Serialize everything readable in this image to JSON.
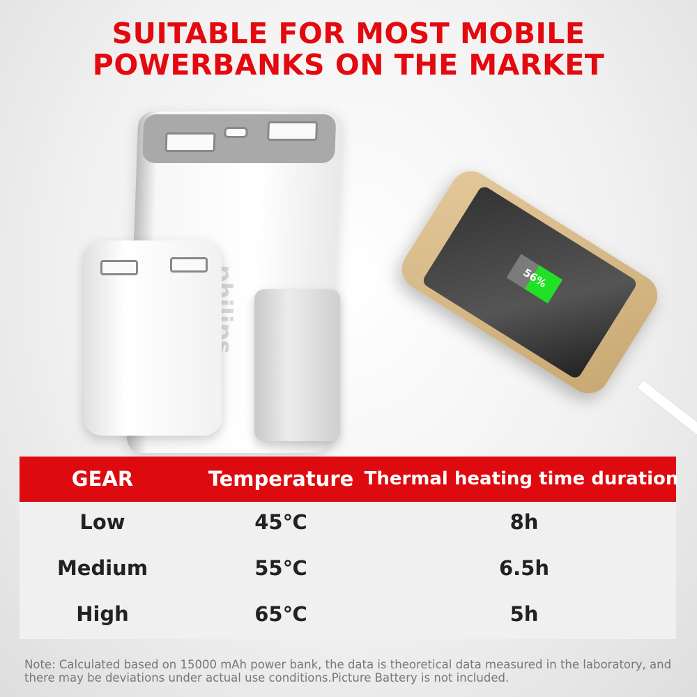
{
  "title": {
    "line1": "SUITABLE FOR MOST MOBILE",
    "line2": "POWERBANKS ON THE MARKET"
  },
  "product_image": {
    "brand_text": "philips",
    "phone_battery_percent": "56%",
    "battery_level": 0.56
  },
  "table": {
    "headers": [
      "GEAR",
      "Temperature",
      "Thermal heating time duration"
    ],
    "rows": [
      [
        "Low",
        "45℃",
        "8h"
      ],
      [
        "Medium",
        "55℃",
        "6.5h"
      ],
      [
        "High",
        "65℃",
        "5h"
      ]
    ]
  },
  "note": "Note: Calculated based on 15000 mAh power bank, the data is theoretical data measured in the laboratory, and there may be deviations under actual use conditions.Picture Battery is not included.",
  "colors": {
    "accent": "#dd0a0f",
    "row_bg": "#f0f0f0"
  }
}
